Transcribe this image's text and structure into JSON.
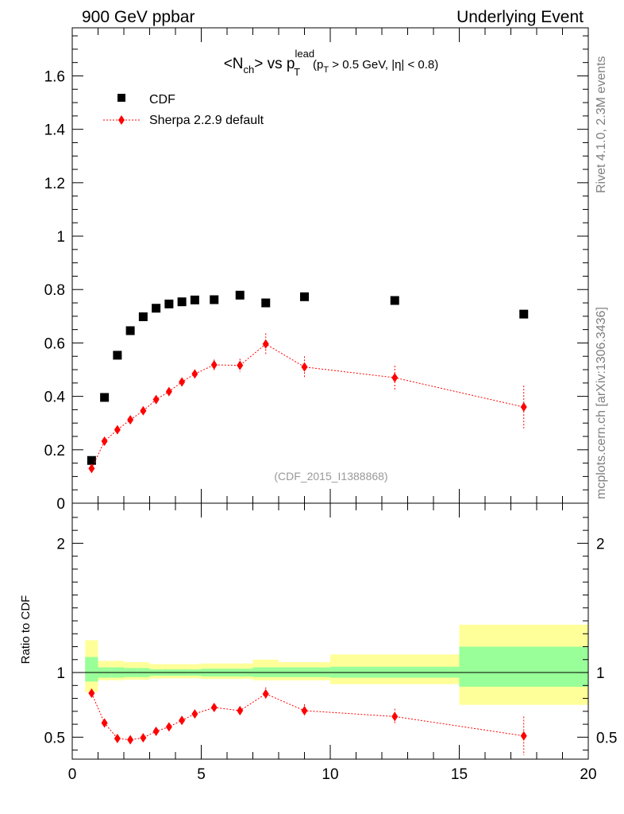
{
  "header": {
    "left": "900 GeV ppbar",
    "right": "Underlying Event"
  },
  "side_labels": {
    "rivet": "Rivet 4.1.0,  2.3M events",
    "site": "mcplots.cern.ch [arXiv:1306.3436]"
  },
  "colors": {
    "data": "#000000",
    "mc": "#ff0000",
    "band_inner": "#99ff99",
    "band_outer": "#ffff99"
  },
  "chart_data": [
    {
      "type": "scatter",
      "panel": "main",
      "title": {
        "pre": "<N",
        "sub1": "ch",
        "mid": "> vs p",
        "sup": "lead",
        "sub2": "T",
        "post": "(p",
        "sub3": "T",
        "tail": " > 0.5 GeV, |η| < 0.8)"
      },
      "watermark": "(CDF_2015_I1388868)",
      "xlim": [
        0,
        20
      ],
      "ylim": [
        0,
        1.78
      ],
      "yticks": [
        {
          "v": 0,
          "label": "0"
        },
        {
          "v": 0.2,
          "label": "0.2"
        },
        {
          "v": 0.4,
          "label": "0.4"
        },
        {
          "v": 0.6,
          "label": "0.6"
        },
        {
          "v": 0.8,
          "label": "0.8"
        },
        {
          "v": 1.0,
          "label": "1"
        },
        {
          "v": 1.2,
          "label": "1.2"
        },
        {
          "v": 1.4,
          "label": "1.4"
        },
        {
          "v": 1.6,
          "label": "1.6"
        }
      ],
      "legend": [
        {
          "name": "CDF",
          "kind": "data"
        },
        {
          "name": "Sherpa 2.2.9 default",
          "kind": "mc"
        }
      ],
      "series": [
        {
          "name": "CDF",
          "x": [
            0.75,
            1.25,
            1.75,
            2.25,
            2.75,
            3.25,
            3.75,
            4.25,
            4.75,
            5.5,
            6.5,
            7.5,
            9.0,
            12.5,
            17.5
          ],
          "y": [
            0.16,
            0.396,
            0.554,
            0.646,
            0.698,
            0.73,
            0.746,
            0.754,
            0.761,
            0.762,
            0.779,
            0.75,
            0.773,
            0.759,
            0.708
          ],
          "xerr": [
            0.25,
            0.25,
            0.25,
            0.25,
            0.25,
            0.25,
            0.25,
            0.25,
            0.25,
            0.5,
            0.5,
            0.5,
            1.0,
            2.5,
            2.5
          ]
        },
        {
          "name": "Sherpa 2.2.9 default",
          "x": [
            0.75,
            1.25,
            1.75,
            2.25,
            2.75,
            3.25,
            3.75,
            4.25,
            4.75,
            5.5,
            6.5,
            7.5,
            9.0,
            12.5,
            17.5
          ],
          "y": [
            0.13,
            0.232,
            0.275,
            0.312,
            0.346,
            0.388,
            0.418,
            0.454,
            0.484,
            0.518,
            0.516,
            0.596,
            0.51,
            0.47,
            0.36
          ],
          "yerr": [
            0.01,
            0.01,
            0.01,
            0.01,
            0.012,
            0.012,
            0.012,
            0.014,
            0.014,
            0.02,
            0.025,
            0.04,
            0.04,
            0.045,
            0.08
          ]
        }
      ]
    },
    {
      "type": "scatter",
      "panel": "ratio",
      "ylabel": "Ratio to CDF",
      "xlim": [
        0,
        20
      ],
      "ylim": [
        0.33,
        2.31
      ],
      "yticks_left": [
        {
          "v": 0.5,
          "label": "0.5"
        },
        {
          "v": 1.0,
          "label": "1"
        },
        {
          "v": 2.0,
          "label": "2"
        }
      ],
      "xticks": [
        {
          "v": 0,
          "label": "0"
        },
        {
          "v": 5,
          "label": "5"
        },
        {
          "v": 10,
          "label": "10"
        },
        {
          "v": 15,
          "label": "15"
        },
        {
          "v": 20,
          "label": "20"
        }
      ],
      "bands": [
        {
          "xlo": 0.5,
          "xhi": 1.0,
          "inner": [
            0.93,
            1.12
          ],
          "outer": [
            0.85,
            1.25
          ]
        },
        {
          "xlo": 1.0,
          "xhi": 1.5,
          "inner": [
            0.96,
            1.04
          ],
          "outer": [
            0.94,
            1.09
          ]
        },
        {
          "xlo": 1.5,
          "xhi": 2.0,
          "inner": [
            0.96,
            1.04
          ],
          "outer": [
            0.94,
            1.09
          ]
        },
        {
          "xlo": 2.0,
          "xhi": 2.5,
          "inner": [
            0.965,
            1.035
          ],
          "outer": [
            0.945,
            1.08
          ]
        },
        {
          "xlo": 2.5,
          "xhi": 3.0,
          "inner": [
            0.965,
            1.035
          ],
          "outer": [
            0.945,
            1.08
          ]
        },
        {
          "xlo": 3.0,
          "xhi": 3.5,
          "inner": [
            0.975,
            1.025
          ],
          "outer": [
            0.955,
            1.065
          ]
        },
        {
          "xlo": 3.5,
          "xhi": 4.0,
          "inner": [
            0.975,
            1.025
          ],
          "outer": [
            0.955,
            1.065
          ]
        },
        {
          "xlo": 4.0,
          "xhi": 4.5,
          "inner": [
            0.975,
            1.025
          ],
          "outer": [
            0.955,
            1.065
          ]
        },
        {
          "xlo": 4.5,
          "xhi": 5.0,
          "inner": [
            0.975,
            1.025
          ],
          "outer": [
            0.955,
            1.065
          ]
        },
        {
          "xlo": 5.0,
          "xhi": 6.0,
          "inner": [
            0.97,
            1.03
          ],
          "outer": [
            0.95,
            1.07
          ]
        },
        {
          "xlo": 6.0,
          "xhi": 7.0,
          "inner": [
            0.97,
            1.03
          ],
          "outer": [
            0.95,
            1.07
          ]
        },
        {
          "xlo": 7.0,
          "xhi": 8.0,
          "inner": [
            0.965,
            1.04
          ],
          "outer": [
            0.94,
            1.1
          ]
        },
        {
          "xlo": 8.0,
          "xhi": 10.0,
          "inner": [
            0.965,
            1.04
          ],
          "outer": [
            0.94,
            1.08
          ]
        },
        {
          "xlo": 10.0,
          "xhi": 15.0,
          "inner": [
            0.96,
            1.045
          ],
          "outer": [
            0.91,
            1.14
          ]
        },
        {
          "xlo": 15.0,
          "xhi": 20.0,
          "inner": [
            0.89,
            1.2
          ],
          "outer": [
            0.75,
            1.37
          ]
        }
      ],
      "series": [
        {
          "name": "Sherpa 2.2.9 default / CDF",
          "x": [
            0.75,
            1.25,
            1.75,
            2.25,
            2.75,
            3.25,
            3.75,
            4.25,
            4.75,
            5.5,
            6.5,
            7.5,
            9.0,
            12.5,
            17.5
          ],
          "y": [
            0.84,
            0.61,
            0.49,
            0.48,
            0.495,
            0.545,
            0.58,
            0.63,
            0.68,
            0.73,
            0.705,
            0.835,
            0.705,
            0.66,
            0.51
          ],
          "yerr": [
            0.015,
            0.015,
            0.015,
            0.015,
            0.015,
            0.015,
            0.015,
            0.015,
            0.02,
            0.025,
            0.03,
            0.05,
            0.05,
            0.06,
            0.15
          ]
        }
      ]
    }
  ]
}
